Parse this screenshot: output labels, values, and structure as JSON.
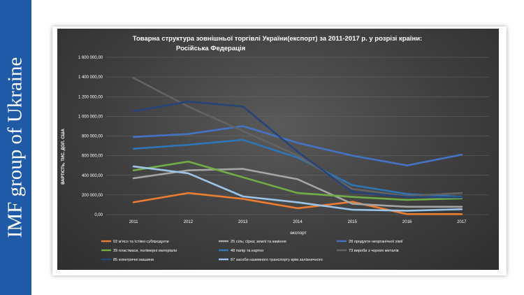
{
  "branding": {
    "text": "IMF group of Ukraine"
  },
  "chart_data": {
    "type": "line",
    "title_line1": "Товарна структура зовнішньої торгівлі України(експорт) за 2011-2017 р. у розрізі країни:",
    "title_line2": "Російська Федерація",
    "xlabel": "експорт",
    "ylabel": "ВАРТІСТЬ, ТИС. ДОЛ. США",
    "x": [
      "2011",
      "2012",
      "2013",
      "2014",
      "2015",
      "2016",
      "2017"
    ],
    "ylim": [
      0,
      1600000
    ],
    "yticks": [
      0,
      200000,
      400000,
      600000,
      800000,
      1000000,
      1200000,
      1400000,
      1600000
    ],
    "ytick_labels": [
      "0,00",
      "200 000,00",
      "400 000,00",
      "600 000,00",
      "800 000,00",
      "1 000 000,00",
      "1 200 000,00",
      "1 400 000,00",
      "1 600 000,00"
    ],
    "grid": true,
    "legend_position": "bottom",
    "series": [
      {
        "name": "02 м'ясо та їстівні субпродукти",
        "color": "#ed7d31",
        "values": [
          125000,
          220000,
          160000,
          65000,
          130000,
          5000,
          5000
        ]
      },
      {
        "name": "25 сіль; сірка; землі та каміння",
        "color": "#a5a5a5",
        "values": [
          370000,
          450000,
          465000,
          360000,
          110000,
          80000,
          80000
        ]
      },
      {
        "name": "28 продукти неорганічної хімії",
        "color": "#4472c4",
        "values": [
          790000,
          820000,
          900000,
          730000,
          600000,
          500000,
          610000
        ]
      },
      {
        "name": "39 пластмаси, полімерні матеріали",
        "color": "#70ad47",
        "values": [
          450000,
          540000,
          380000,
          220000,
          180000,
          150000,
          165000
        ]
      },
      {
        "name": "48 папір та картон",
        "color": "#2e75b6",
        "values": [
          670000,
          710000,
          760000,
          580000,
          300000,
          210000,
          180000
        ]
      },
      {
        "name": "73 вироби з чорних металів",
        "color": "#636363",
        "values": [
          1390000,
          1100000,
          850000,
          600000,
          260000,
          190000,
          220000
        ]
      },
      {
        "name": "85 електричні машини",
        "color": "#264478",
        "values": [
          1050000,
          1150000,
          1100000,
          640000,
          230000,
          180000,
          175000
        ]
      },
      {
        "name": "87 засоби наземного транспорту крім залізничного",
        "color": "#9dc3e6",
        "values": [
          490000,
          420000,
          185000,
          125000,
          50000,
          40000,
          55000
        ]
      }
    ]
  }
}
